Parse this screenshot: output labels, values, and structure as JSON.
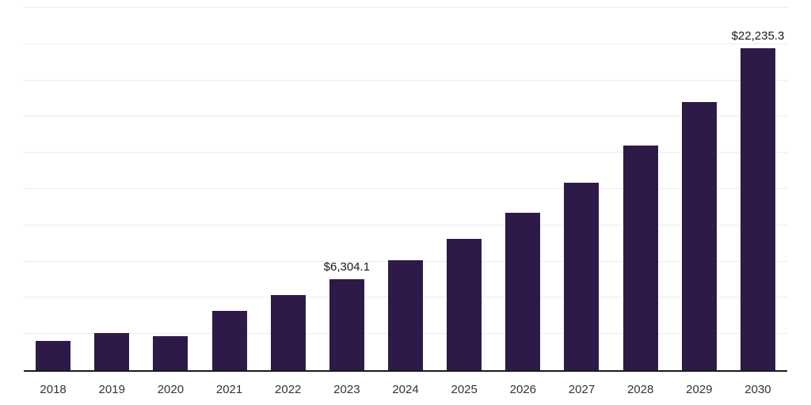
{
  "chart_data": {
    "type": "bar",
    "title": "",
    "xlabel": "",
    "ylabel": "",
    "categories": [
      "2018",
      "2019",
      "2020",
      "2021",
      "2022",
      "2023",
      "2024",
      "2025",
      "2026",
      "2027",
      "2028",
      "2029",
      "2030"
    ],
    "values": [
      2000,
      2550,
      2340,
      4100,
      5160,
      6304.1,
      7600,
      9040,
      10850,
      12930,
      15480,
      18510,
      22235.3
    ],
    "data_labels": {
      "2023": "$6,304.1",
      "2030": "$22,235.3"
    },
    "ylim": [
      0,
      25000
    ],
    "gridline_interval": 2500,
    "grid": true,
    "legend": false,
    "bar_color": "#2E1A47",
    "axis_line_color": "#1a1a1a",
    "gridline_color": "#ececec",
    "tick_label_color": "#333333",
    "data_label_color": "#1a1a1a"
  }
}
